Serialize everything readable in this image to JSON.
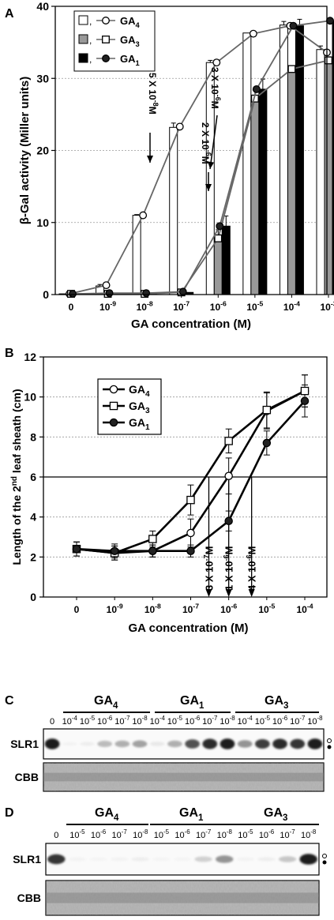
{
  "panels": {
    "A": "A",
    "B": "B",
    "C": "C",
    "D": "D"
  },
  "chart_data": [
    {
      "type": "bar",
      "panel": "A",
      "xlabel": "GA concentration (M)",
      "ylabel": "β-Gal activity (Miller units)",
      "ylim": [
        0,
        40
      ],
      "yticks": [
        "0",
        "10",
        "20",
        "30",
        "40"
      ],
      "categories": [
        "0",
        "10-9",
        "10-8",
        "10-7",
        "10-6",
        "10-5",
        "10-4",
        "10-3"
      ],
      "category_labels": [
        {
          "base": "0",
          "exp": ""
        },
        {
          "base": "10",
          "exp": "-9"
        },
        {
          "base": "10",
          "exp": "-8"
        },
        {
          "base": "10",
          "exp": "-7"
        },
        {
          "base": "10",
          "exp": "-6"
        },
        {
          "base": "10",
          "exp": "-5"
        },
        {
          "base": "10",
          "exp": "-4"
        },
        {
          "base": "10",
          "exp": "-3"
        }
      ],
      "grid": "horizontal dashed",
      "legend_position": "top-left",
      "series": [
        {
          "name": "GA4",
          "legend": {
            "base": "GA",
            "sub": "4"
          },
          "bar_color": "#ffffff",
          "marker": "open-circle",
          "values": [
            0.1,
            1.2,
            11,
            23.2,
            32.2,
            36.3,
            37.4,
            34
          ],
          "errors": [
            0,
            0.2,
            0.1,
            0.6,
            0.3,
            0,
            0.5,
            0.5
          ]
        },
        {
          "name": "GA3",
          "legend": {
            "base": "GA",
            "sub": "3"
          },
          "bar_color": "#999999",
          "marker": "open-square",
          "values": [
            0.1,
            0.1,
            0.1,
            0.2,
            7.9,
            27,
            31.3,
            32.5
          ],
          "errors": [
            0,
            0,
            0,
            0,
            1.1,
            1.4,
            0,
            0.5
          ]
        },
        {
          "name": "GA1",
          "legend": {
            "base": "GA",
            "sub": "1"
          },
          "bar_color": "#000000",
          "marker": "filled-circle",
          "values": [
            0.1,
            0.2,
            0.2,
            0.3,
            9.5,
            28.5,
            37.3,
            38
          ],
          "errors": [
            0,
            0,
            0,
            0,
            1.4,
            1.4,
            0.9,
            0.6
          ]
        }
      ],
      "line_values": {
        "GA4": [
          0.1,
          1.3,
          11,
          23.3,
          32.2,
          36.2,
          37.3,
          33.6
        ],
        "GA3": [
          0.1,
          0.1,
          0.1,
          0.3,
          7.8,
          27.2,
          31.3,
          32.5
        ],
        "GA1": [
          0.1,
          0.2,
          0.2,
          0.4,
          9.5,
          28.5,
          37.3,
          38
        ]
      },
      "annotations": [
        {
          "text": "5 X 10-8M",
          "base": "5 X 10",
          "exp": "-8",
          "unit": "M"
        },
        {
          "text": "2 X 10-6M",
          "base": "2 X 10",
          "exp": "-6",
          "unit": "M"
        },
        {
          "text": "3 X 10-6M",
          "base": "3 X 10",
          "exp": "-6",
          "unit": "M"
        }
      ]
    },
    {
      "type": "line",
      "panel": "B",
      "xlabel": "GA concentration (M)",
      "ylabel": "Length of the 2nd leaf sheath (cm)",
      "ylabel_parts": {
        "pre": "Length of the 2",
        "sup": "nd",
        "post": " leaf sheath (cm)"
      },
      "ylim": [
        0,
        12
      ],
      "yticks": [
        "0",
        "2",
        "4",
        "6",
        "8",
        "10",
        "12"
      ],
      "categories": [
        "0",
        "10-9",
        "10-8",
        "10-7",
        "10-6",
        "10-5",
        "10-4"
      ],
      "category_labels": [
        {
          "base": "0",
          "exp": ""
        },
        {
          "base": "10",
          "exp": "-9"
        },
        {
          "base": "10",
          "exp": "-8"
        },
        {
          "base": "10",
          "exp": "-7"
        },
        {
          "base": "10",
          "exp": "-6"
        },
        {
          "base": "10",
          "exp": "-5"
        },
        {
          "base": "10",
          "exp": "-4"
        }
      ],
      "grid": "horizontal dashed",
      "reference_line_y": 6,
      "legend_position": "top-left",
      "series": [
        {
          "name": "GA4",
          "legend": {
            "base": "GA",
            "sub": "4"
          },
          "marker": "open-circle",
          "values": [
            2.4,
            2.2,
            2.3,
            3.2,
            6.05,
            9.3,
            10.3
          ],
          "errors": [
            0.35,
            0.35,
            0.3,
            0.7,
            0.9,
            0.9,
            0.8
          ]
        },
        {
          "name": "GA3",
          "legend": {
            "base": "GA",
            "sub": "3"
          },
          "marker": "open-square",
          "values": [
            2.4,
            2.2,
            2.9,
            4.85,
            7.8,
            9.35,
            10.3
          ],
          "errors": [
            0.35,
            0.35,
            0.4,
            0.75,
            0.6,
            0.9,
            0.8
          ]
        },
        {
          "name": "GA1",
          "legend": {
            "base": "GA",
            "sub": "1"
          },
          "marker": "filled-circle",
          "values": [
            2.4,
            2.3,
            2.3,
            2.3,
            3.8,
            7.7,
            9.8
          ],
          "errors": [
            0.35,
            0.35,
            0.3,
            0.3,
            0.5,
            0.6,
            0.8
          ]
        }
      ],
      "annotations": [
        {
          "text": "3 X 10-7M",
          "base": "3 X 10",
          "exp": "-7",
          "unit": "M",
          "x_value": 3e-07
        },
        {
          "text": "1 X 10-6M",
          "base": "1 X 10",
          "exp": "-6",
          "unit": "M",
          "x_value": 1e-06
        },
        {
          "text": "4 X 10-6M",
          "base": "4 X 10",
          "exp": "-6",
          "unit": "M",
          "x_value": 4e-06
        }
      ]
    }
  ],
  "blots": {
    "C": {
      "groups": [
        {
          "base": "GA",
          "sub": "4"
        },
        {
          "base": "GA",
          "sub": "1"
        },
        {
          "base": "GA",
          "sub": "3"
        }
      ],
      "lanes": [
        "0",
        "10-4",
        "10-5",
        "10-6",
        "10-7",
        "10-8",
        "10-4",
        "10-5",
        "10-6",
        "10-7",
        "10-8",
        "10-4",
        "10-5",
        "10-6",
        "10-7",
        "10-8"
      ],
      "lane_labels": [
        {
          "base": "0",
          "exp": ""
        },
        {
          "base": "10",
          "exp": "-4"
        },
        {
          "base": "10",
          "exp": "-5"
        },
        {
          "base": "10",
          "exp": "-6"
        },
        {
          "base": "10",
          "exp": "-7"
        },
        {
          "base": "10",
          "exp": "-8"
        },
        {
          "base": "10",
          "exp": "-4"
        },
        {
          "base": "10",
          "exp": "-5"
        },
        {
          "base": "10",
          "exp": "-6"
        },
        {
          "base": "10",
          "exp": "-7"
        },
        {
          "base": "10",
          "exp": "-8"
        },
        {
          "base": "10",
          "exp": "-4"
        },
        {
          "base": "10",
          "exp": "-5"
        },
        {
          "base": "10",
          "exp": "-6"
        },
        {
          "base": "10",
          "exp": "-7"
        },
        {
          "base": "10",
          "exp": "-8"
        }
      ],
      "row_labels": [
        "SLR1",
        "CBB"
      ],
      "band_intensity": [
        0.95,
        0.05,
        0.1,
        0.4,
        0.45,
        0.5,
        0.15,
        0.45,
        0.75,
        0.9,
        0.95,
        0.55,
        0.8,
        0.9,
        0.85,
        0.95
      ]
    },
    "D": {
      "groups": [
        {
          "base": "GA",
          "sub": "4"
        },
        {
          "base": "GA",
          "sub": "1"
        },
        {
          "base": "GA",
          "sub": "3"
        }
      ],
      "lanes": [
        "0",
        "10-5",
        "10-6",
        "10-7",
        "10-8",
        "10-5",
        "10-6",
        "10-7",
        "10-8",
        "10-5",
        "10-6",
        "10-7",
        "10-8"
      ],
      "lane_labels": [
        {
          "base": "0",
          "exp": ""
        },
        {
          "base": "10",
          "exp": "-5"
        },
        {
          "base": "10",
          "exp": "-6"
        },
        {
          "base": "10",
          "exp": "-7"
        },
        {
          "base": "10",
          "exp": "-8"
        },
        {
          "base": "10",
          "exp": "-5"
        },
        {
          "base": "10",
          "exp": "-6"
        },
        {
          "base": "10",
          "exp": "-7"
        },
        {
          "base": "10",
          "exp": "-8"
        },
        {
          "base": "10",
          "exp": "-5"
        },
        {
          "base": "10",
          "exp": "-6"
        },
        {
          "base": "10",
          "exp": "-7"
        },
        {
          "base": "10",
          "exp": "-8"
        }
      ],
      "row_labels": [
        "SLR1",
        "CBB"
      ],
      "band_intensity": [
        0.85,
        0.05,
        0.03,
        0.05,
        0.1,
        0.03,
        0.03,
        0.3,
        0.55,
        0.05,
        0.1,
        0.35,
        0.95
      ]
    }
  }
}
